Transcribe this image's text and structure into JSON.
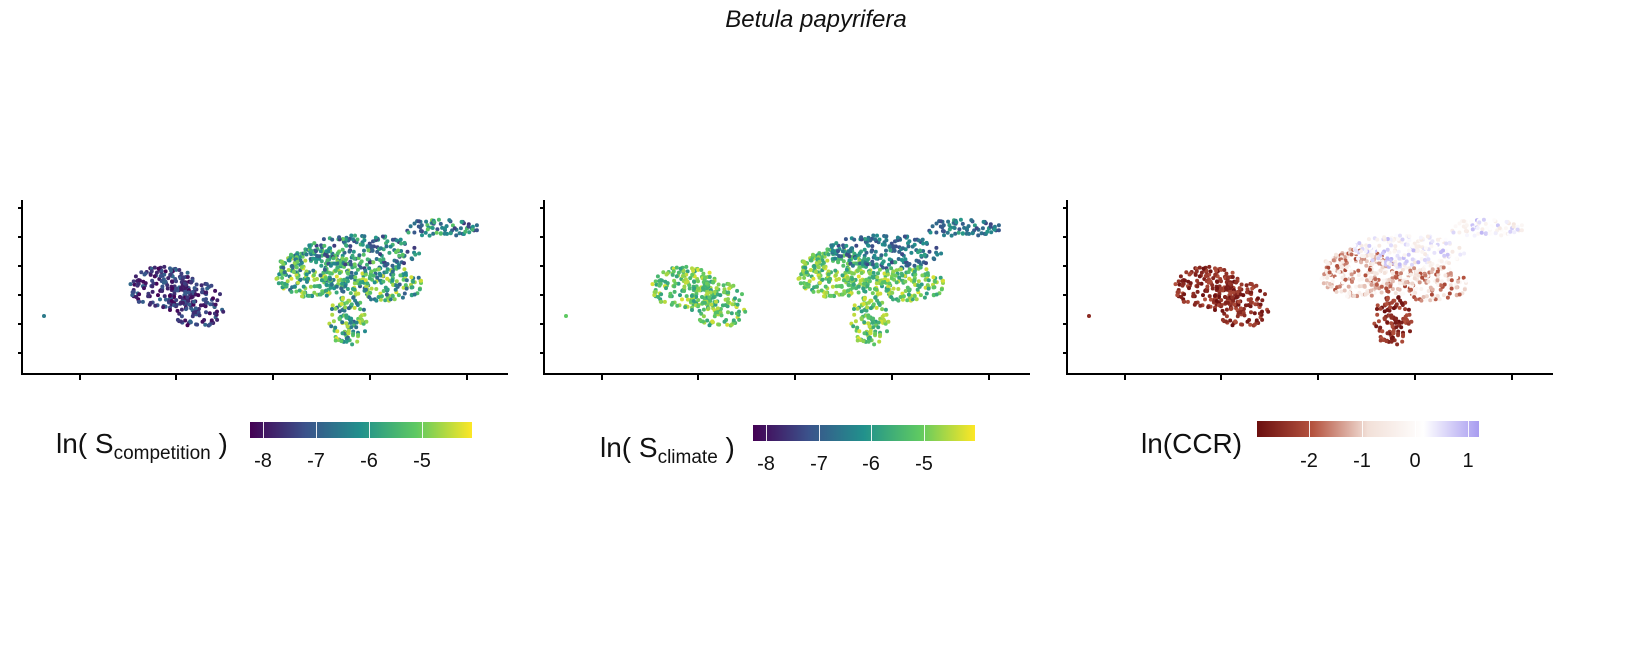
{
  "figure": {
    "title": "Betula papyrifera"
  },
  "panels": [
    {
      "id": "competition",
      "legend": {
        "prefix": "ln( S",
        "sub": "competition",
        "suffix": " )"
      },
      "colorbar": {
        "palette": "viridis",
        "ticks": [
          "-8",
          "-7",
          "-6",
          "-5"
        ],
        "range": [
          -8.2,
          -4.0
        ]
      }
    },
    {
      "id": "climate",
      "legend": {
        "prefix": "ln( S",
        "sub": "climate",
        "suffix": " )"
      },
      "colorbar": {
        "palette": "viridis",
        "ticks": [
          "-8",
          "-7",
          "-6",
          "-5"
        ],
        "range": [
          -8.2,
          -4.0
        ]
      }
    },
    {
      "id": "ccr",
      "legend": {
        "prefix": "ln(CCR)",
        "sub": "",
        "suffix": ""
      },
      "colorbar": {
        "palette": "diverging-red-white-purple",
        "ticks": [
          "-2",
          "-1",
          "0",
          "1"
        ],
        "range": [
          -2.8,
          1.2
        ]
      }
    }
  ],
  "colors": {
    "viridis": [
      "#440154",
      "#3b528b",
      "#21918c",
      "#5ec962",
      "#fde725"
    ],
    "diverging": [
      "#6b0f0f",
      "#b5533f",
      "#f2e0d8",
      "#ffffff",
      "#a89cf0"
    ]
  }
}
